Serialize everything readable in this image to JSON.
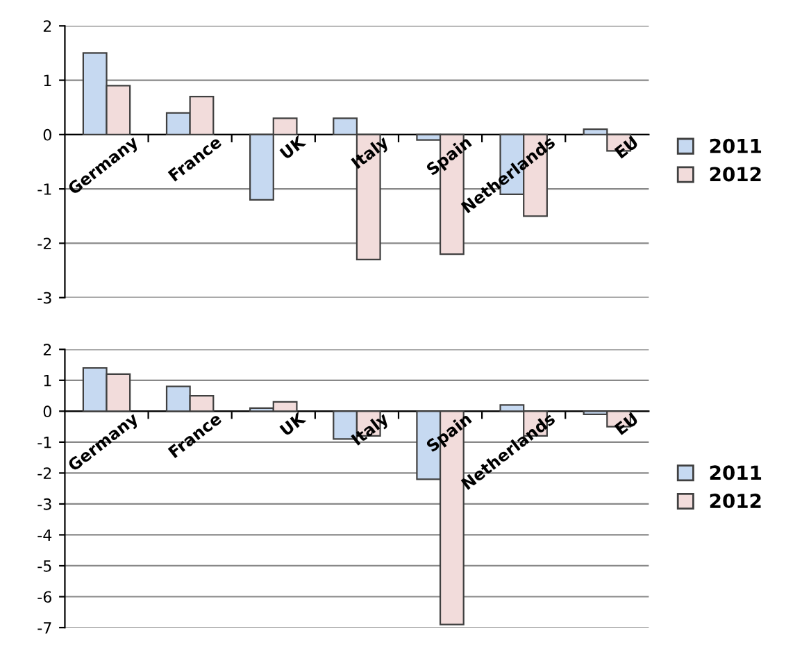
{
  "chart_data": [
    {
      "type": "bar",
      "categories": [
        "Germany",
        "France",
        "UK",
        "Italy",
        "Spain",
        "Netherlands",
        "EU"
      ],
      "series": [
        {
          "name": "2011",
          "color": "#c6d9f1",
          "values": [
            1.5,
            0.4,
            -1.2,
            0.3,
            -0.1,
            -1.1,
            0.1
          ]
        },
        {
          "name": "2012",
          "color": "#f2dcdb",
          "values": [
            0.9,
            0.7,
            0.3,
            -2.3,
            -2.2,
            -1.5,
            -0.3
          ]
        }
      ],
      "ylim": [
        -3,
        2
      ],
      "yticks": [
        -3,
        -2,
        -1,
        0,
        1,
        2
      ],
      "grid": "y",
      "legend": "right"
    },
    {
      "type": "bar",
      "categories": [
        "Germany",
        "France",
        "UK",
        "Italy",
        "Spain",
        "Netherlands",
        "EU"
      ],
      "series": [
        {
          "name": "2011",
          "color": "#c6d9f1",
          "values": [
            1.4,
            0.8,
            0.1,
            -0.9,
            -2.2,
            0.2,
            -0.1
          ]
        },
        {
          "name": "2012",
          "color": "#f2dcdb",
          "values": [
            1.2,
            0.5,
            0.3,
            -0.8,
            -6.9,
            -0.8,
            -0.5
          ]
        }
      ],
      "ylim": [
        -7,
        2
      ],
      "yticks": [
        -7,
        -6,
        -5,
        -4,
        -3,
        -2,
        -1,
        0,
        1,
        2
      ],
      "grid": "y",
      "legend": "right"
    }
  ]
}
